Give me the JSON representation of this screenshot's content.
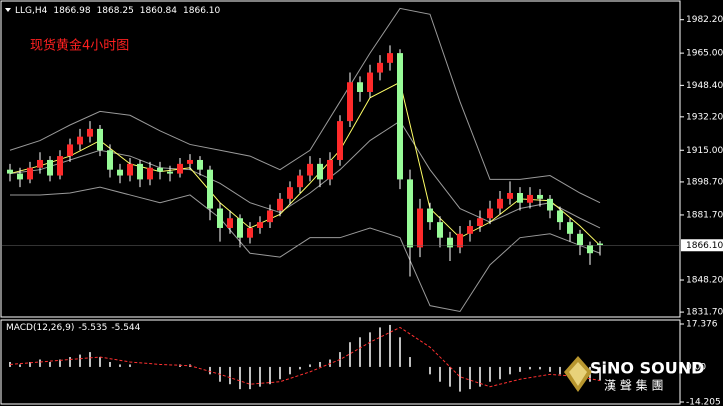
{
  "chart_data": [
    {
      "type": "candlestick",
      "symbol": "LLG,H4",
      "header_values": [
        1866.98,
        1868.25,
        1860.84,
        {
          "value": 1866.1,
          "label": "1866.10"
        }
      ],
      "annotation": "现货黄金4小时图",
      "ylim": [
        1830.2,
        1990.8
      ],
      "yticks": [
        {
          "value": 1982.2,
          "label": "1982.20"
        },
        {
          "value": 1965,
          "label": "1965.00"
        },
        {
          "value": 1948.4,
          "label": "1948.40"
        },
        {
          "value": 1932.2,
          "label": "1932.20"
        },
        {
          "value": 1915,
          "label": "1915.00"
        },
        {
          "value": 1898.7,
          "label": "1898.70"
        },
        {
          "value": 1881.7,
          "label": "1881.70"
        },
        {
          "value": 1848.2,
          "label": "1848.20"
        },
        {
          "value": 1831.7,
          "label": "1831.70"
        }
      ],
      "current_price": {
        "value": 1866.1,
        "label": "1866.10"
      },
      "up_color": "#ff2a2a",
      "down_color": "#98fb98",
      "wick_color": "#ffffff",
      "candles": [
        [
          1905,
          1908,
          1899,
          1903
        ],
        [
          1903,
          1906,
          1896,
          1900
        ],
        [
          1900,
          1909,
          1898,
          1906
        ],
        [
          1906,
          1914,
          1903,
          1910
        ],
        [
          1910,
          1912,
          1899,
          1902
        ],
        [
          1902,
          1915,
          1900,
          1912
        ],
        [
          1912,
          1921,
          1909,
          1918
        ],
        [
          1918,
          1926,
          1915,
          1922
        ],
        [
          1922,
          1930,
          1919,
          1926
        ],
        [
          1926,
          1928,
          1912,
          1915
        ],
        [
          1915,
          1918,
          1901,
          1905
        ],
        [
          1905,
          1908,
          1898,
          1902
        ],
        [
          1902,
          1911,
          1899,
          1908
        ],
        [
          1908,
          1910,
          1896,
          1900
        ],
        [
          1900,
          1909,
          1897,
          1906
        ],
        [
          1906,
          1909,
          1900,
          1904
        ],
        [
          1904,
          1907,
          1899,
          1903
        ],
        [
          1903,
          1911,
          1901,
          1908
        ],
        [
          1908,
          1913,
          1905,
          1910
        ],
        [
          1910,
          1912,
          1902,
          1905
        ],
        [
          1905,
          1907,
          1879,
          1885
        ],
        [
          1885,
          1888,
          1868,
          1875
        ],
        [
          1875,
          1884,
          1872,
          1880
        ],
        [
          1880,
          1882,
          1865,
          1870
        ],
        [
          1870,
          1878,
          1867,
          1875
        ],
        [
          1875,
          1881,
          1872,
          1878
        ],
        [
          1878,
          1887,
          1875,
          1884
        ],
        [
          1884,
          1893,
          1881,
          1890
        ],
        [
          1890,
          1899,
          1887,
          1896
        ],
        [
          1896,
          1905,
          1893,
          1902
        ],
        [
          1902,
          1912,
          1899,
          1908
        ],
        [
          1908,
          1911,
          1896,
          1900
        ],
        [
          1900,
          1914,
          1897,
          1910
        ],
        [
          1910,
          1933,
          1907,
          1930
        ],
        [
          1930,
          1955,
          1927,
          1950
        ],
        [
          1950,
          1953,
          1940,
          1945
        ],
        [
          1945,
          1959,
          1942,
          1955
        ],
        [
          1955,
          1964,
          1951,
          1960
        ],
        [
          1960,
          1969,
          1956,
          1965
        ],
        [
          1965,
          1967,
          1895,
          1900
        ],
        [
          1900,
          1905,
          1850,
          1865
        ],
        [
          1865,
          1890,
          1860,
          1885
        ],
        [
          1885,
          1888,
          1874,
          1878
        ],
        [
          1878,
          1881,
          1865,
          1870
        ],
        [
          1870,
          1873,
          1858,
          1865
        ],
        [
          1865,
          1876,
          1862,
          1872
        ],
        [
          1872,
          1879,
          1868,
          1876
        ],
        [
          1876,
          1884,
          1873,
          1880
        ],
        [
          1880,
          1889,
          1877,
          1885
        ],
        [
          1885,
          1894,
          1882,
          1890
        ],
        [
          1890,
          1899,
          1887,
          1893
        ],
        [
          1893,
          1896,
          1884,
          1888
        ],
        [
          1888,
          1896,
          1885,
          1892
        ],
        [
          1892,
          1895,
          1886,
          1890
        ],
        [
          1890,
          1892,
          1880,
          1884
        ],
        [
          1884,
          1886,
          1874,
          1878
        ],
        [
          1878,
          1880,
          1868,
          1872
        ],
        [
          1872,
          1874,
          1861,
          1866
        ],
        [
          1866,
          1868,
          1856,
          1862
        ],
        [
          1866.98,
          1868.25,
          1860.84,
          1866.1
        ]
      ],
      "series": [
        {
          "color": "#9a9a9a",
          "x": [
            0,
            3,
            6,
            9,
            12,
            15,
            18,
            21,
            24,
            27,
            30,
            33,
            36,
            39,
            42,
            45,
            48,
            51,
            54,
            57,
            59
          ],
          "values": [
            1915,
            1920,
            1928,
            1935,
            1933,
            1925,
            1918,
            1915,
            1912,
            1905,
            1915,
            1940,
            1965,
            1988,
            1985,
            1940,
            1900,
            1900,
            1902,
            1893,
            1888
          ]
        },
        {
          "color": "#9a9a9a",
          "x": [
            0,
            3,
            6,
            9,
            12,
            15,
            18,
            21,
            24,
            27,
            30,
            33,
            36,
            39,
            42,
            45,
            48,
            51,
            54,
            57,
            59
          ],
          "values": [
            1903,
            1905,
            1910,
            1915,
            1912,
            1906,
            1905,
            1898,
            1888,
            1883,
            1893,
            1905,
            1920,
            1930,
            1905,
            1885,
            1878,
            1885,
            1888,
            1880,
            1875
          ]
        },
        {
          "color": "#9a9a9a",
          "x": [
            0,
            3,
            6,
            9,
            12,
            15,
            18,
            21,
            24,
            27,
            30,
            33,
            36,
            39,
            42,
            45,
            48,
            51,
            54,
            57,
            59
          ],
          "values": [
            1892,
            1892,
            1893,
            1896,
            1892,
            1888,
            1892,
            1880,
            1862,
            1860,
            1870,
            1870,
            1875,
            1870,
            1835,
            1832,
            1856,
            1870,
            1872,
            1866,
            1862
          ]
        },
        {
          "color": "#ffff66",
          "x": [
            0,
            3,
            6,
            9,
            12,
            15,
            18,
            21,
            24,
            27,
            30,
            33,
            36,
            39,
            42,
            45,
            48,
            51,
            54,
            57,
            59
          ],
          "values": [
            1903,
            1907,
            1912,
            1920,
            1908,
            1904,
            1906,
            1888,
            1875,
            1882,
            1898,
            1915,
            1942,
            1950,
            1885,
            1870,
            1878,
            1890,
            1889,
            1876,
            1866
          ]
        }
      ]
    },
    {
      "type": "macd",
      "title": "MACD(12,26,9)",
      "macd_value": -5.535,
      "signal_value": -5.544,
      "ylim": [
        -14.205,
        17.376
      ],
      "yticks": [
        17.376,
        {
          "value": 0,
          "label": "0.00"
        },
        -14.205
      ],
      "histogram_color": "#ffffff",
      "values": [
        2,
        1,
        2,
        3,
        2,
        3,
        4,
        5,
        6,
        4,
        2,
        1,
        1,
        0,
        0,
        0,
        0,
        1,
        1,
        0,
        -3,
        -6,
        -7,
        -9,
        -9,
        -8,
        -7,
        -5,
        -3,
        -1,
        1,
        2,
        3,
        6,
        10,
        12,
        14,
        16,
        17,
        12,
        4,
        0,
        -3,
        -6,
        -8,
        -10,
        -9,
        -8,
        -6,
        -5,
        -3,
        -2,
        -1,
        -1,
        -2,
        -3,
        -4,
        -5,
        -6,
        -5.535
      ],
      "signal": {
        "color": "#ff3030",
        "x": [
          0,
          3,
          6,
          9,
          12,
          15,
          18,
          21,
          24,
          27,
          30,
          33,
          36,
          39,
          42,
          45,
          48,
          51,
          54,
          57,
          59
        ],
        "values": [
          1,
          2,
          3,
          4,
          2,
          1,
          0.5,
          -3,
          -7,
          -6,
          -2,
          3,
          10,
          16,
          8,
          -4,
          -8,
          -5,
          -3,
          -4,
          -5.544
        ]
      }
    }
  ],
  "logo": {
    "name": "SiNO SOUND",
    "chinese": "漢 聲 集 團"
  }
}
